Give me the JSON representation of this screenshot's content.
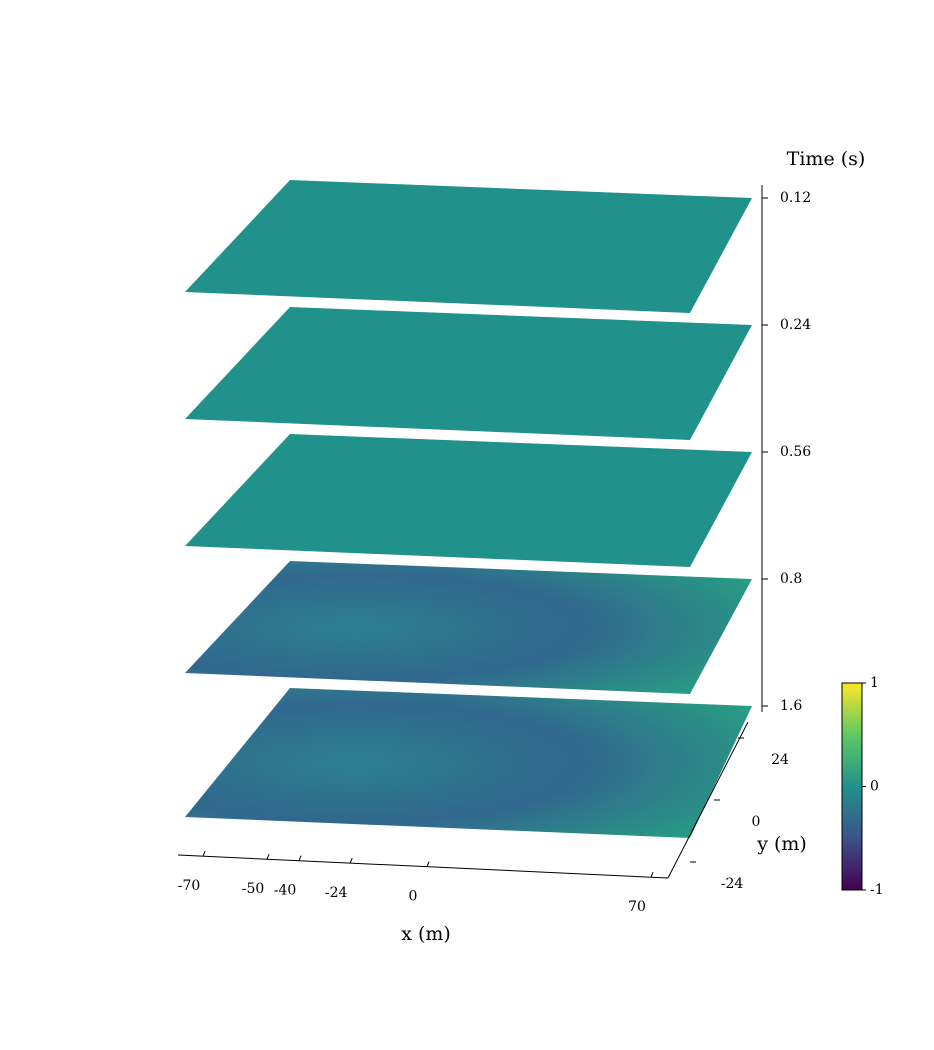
{
  "chart_data": {
    "type": "surface3d",
    "x_label": "x (m)",
    "y_label": "y (m)",
    "z_label": "Time (s)",
    "xticks": [
      -70,
      -50,
      -40,
      -24,
      0,
      70
    ],
    "yticks": [
      -24,
      0,
      24
    ],
    "zticks": [
      0.12,
      0.24,
      0.56,
      0.8,
      1.6
    ],
    "colormap": "viridis",
    "clim": [
      -1,
      1
    ],
    "cticks": [
      -1,
      0,
      1
    ]
  }
}
